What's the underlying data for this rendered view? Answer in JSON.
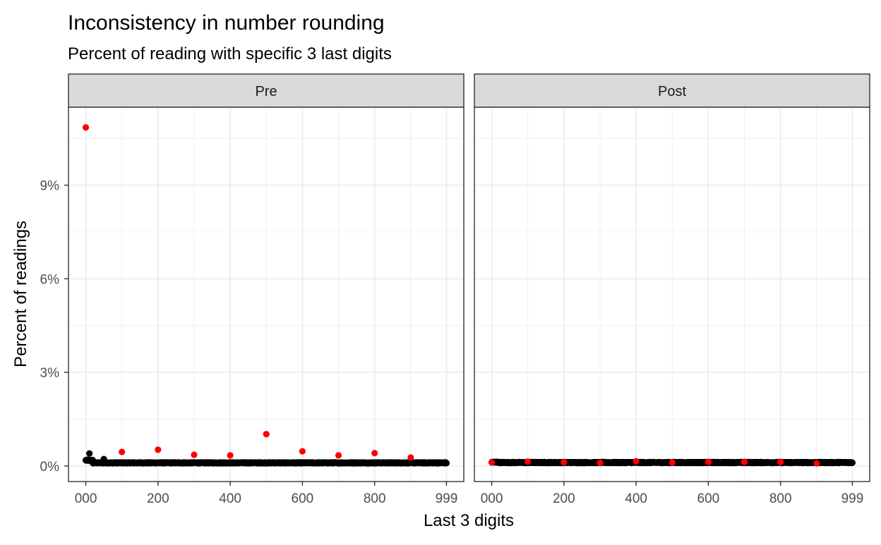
{
  "chart_data": {
    "type": "scatter",
    "title": "Inconsistency in number rounding",
    "subtitle": "Percent of reading with specific 3 last digits",
    "xlabel": "Last 3 digits",
    "ylabel": "Percent of readings",
    "xlim": [
      -48,
      1047
    ],
    "ylim": [
      -0.5,
      11.5
    ],
    "x_ticks": [
      0,
      200,
      400,
      600,
      800,
      999
    ],
    "x_tick_labels": [
      "000",
      "200",
      "400",
      "600",
      "800",
      "999"
    ],
    "y_ticks": [
      0,
      3,
      6,
      9
    ],
    "y_tick_labels": [
      "0%",
      "3%",
      "6%",
      "9%"
    ],
    "grid": true,
    "legend": "none",
    "colors": {
      "regular": "#000000",
      "round_hundreds": "#ff0000"
    },
    "panels": [
      {
        "name": "Pre",
        "baseline": {
          "x_range": [
            0,
            999
          ],
          "typical_value": 0.1,
          "low_digits_value": 0.18,
          "notable_points": [
            {
              "x": 10,
              "y": 0.4
            },
            {
              "x": 50,
              "y": 0.22
            },
            {
              "x": 5,
              "y": 0.2
            }
          ]
        },
        "highlight_points": [
          {
            "x": 0,
            "y": 10.85
          },
          {
            "x": 100,
            "y": 0.45
          },
          {
            "x": 200,
            "y": 0.52
          },
          {
            "x": 300,
            "y": 0.36
          },
          {
            "x": 400,
            "y": 0.34
          },
          {
            "x": 500,
            "y": 1.02
          },
          {
            "x": 600,
            "y": 0.47
          },
          {
            "x": 700,
            "y": 0.34
          },
          {
            "x": 800,
            "y": 0.41
          },
          {
            "x": 900,
            "y": 0.27
          }
        ]
      },
      {
        "name": "Post",
        "baseline": {
          "x_range": [
            0,
            999
          ],
          "typical_value": 0.11,
          "low_digits_value": 0.12,
          "notable_points": []
        },
        "highlight_points": [
          {
            "x": 0,
            "y": 0.11
          },
          {
            "x": 100,
            "y": 0.14
          },
          {
            "x": 200,
            "y": 0.12
          },
          {
            "x": 300,
            "y": 0.1
          },
          {
            "x": 400,
            "y": 0.15
          },
          {
            "x": 500,
            "y": 0.11
          },
          {
            "x": 600,
            "y": 0.13
          },
          {
            "x": 700,
            "y": 0.13
          },
          {
            "x": 800,
            "y": 0.13
          },
          {
            "x": 900,
            "y": 0.08
          }
        ]
      }
    ]
  }
}
